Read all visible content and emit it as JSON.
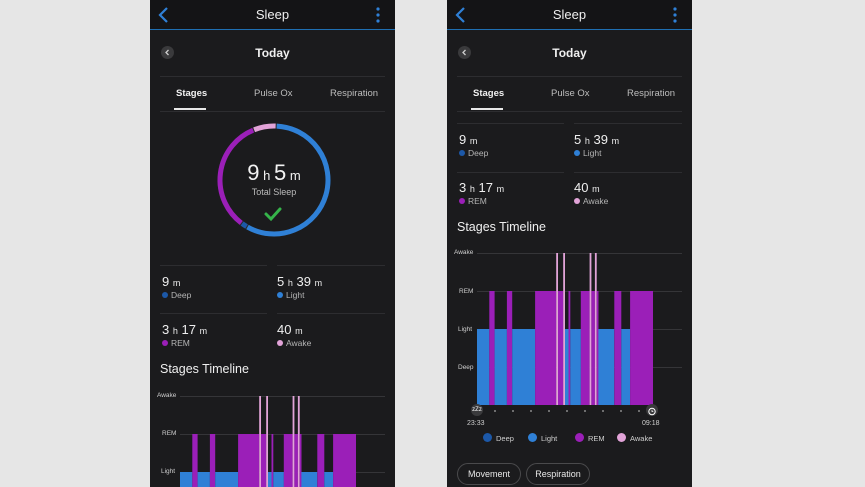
{
  "colors": {
    "deep": "#1c58a8",
    "light": "#2f80d6",
    "rem": "#9b1fb8",
    "awake": "#e2a3d8",
    "accent": "#2f80d6",
    "check": "#35b44a"
  },
  "header": {
    "title": "Sleep",
    "back_icon": "chevron-left-icon",
    "menu_icon": "more-vertical-icon"
  },
  "day": {
    "label": "Today",
    "prev_icon": "chevron-left-icon"
  },
  "tabs": [
    {
      "label": "Stages",
      "active": true
    },
    {
      "label": "Pulse Ox",
      "active": false
    },
    {
      "label": "Respiration",
      "active": false
    }
  ],
  "total_sleep": {
    "hours": "9",
    "hours_unit": "h",
    "minutes": "5",
    "minutes_unit": "m",
    "label": "Total Sleep"
  },
  "stats": [
    {
      "value": "9",
      "unit": "m",
      "label": "Deep",
      "stage": "deep"
    },
    {
      "value": "5",
      "unit": "h",
      "value2": "39",
      "unit2": "m",
      "label": "Light",
      "stage": "light"
    },
    {
      "value": "3",
      "unit": "h",
      "value2": "17",
      "unit2": "m",
      "label": "REM",
      "stage": "rem"
    },
    {
      "value": "40",
      "unit": "m",
      "label": "Awake",
      "stage": "awake"
    }
  ],
  "timeline": {
    "title": "Stages Timeline",
    "levels": [
      "Awake",
      "REM",
      "Light",
      "Deep"
    ],
    "start_time": "23:33",
    "end_time": "09:18",
    "segments": [
      {
        "stage": "light",
        "start": 0.0,
        "end": 0.07
      },
      {
        "stage": "rem",
        "start": 0.07,
        "end": 0.1
      },
      {
        "stage": "light",
        "start": 0.1,
        "end": 0.17
      },
      {
        "stage": "rem",
        "start": 0.17,
        "end": 0.2
      },
      {
        "stage": "light",
        "start": 0.2,
        "end": 0.33
      },
      {
        "stage": "rem",
        "start": 0.33,
        "end": 0.45
      },
      {
        "stage": "awake",
        "start": 0.45,
        "end": 0.46
      },
      {
        "stage": "rem",
        "start": 0.46,
        "end": 0.49
      },
      {
        "stage": "awake",
        "start": 0.49,
        "end": 0.5
      },
      {
        "stage": "light",
        "start": 0.5,
        "end": 0.52
      },
      {
        "stage": "rem",
        "start": 0.52,
        "end": 0.53
      },
      {
        "stage": "light",
        "start": 0.53,
        "end": 0.59
      },
      {
        "stage": "rem",
        "start": 0.59,
        "end": 0.64
      },
      {
        "stage": "awake",
        "start": 0.64,
        "end": 0.65
      },
      {
        "stage": "rem",
        "start": 0.65,
        "end": 0.67
      },
      {
        "stage": "awake",
        "start": 0.67,
        "end": 0.68
      },
      {
        "stage": "rem",
        "start": 0.68,
        "end": 0.69
      },
      {
        "stage": "light",
        "start": 0.69,
        "end": 0.78
      },
      {
        "stage": "rem",
        "start": 0.78,
        "end": 0.82
      },
      {
        "stage": "light",
        "start": 0.82,
        "end": 0.87
      },
      {
        "stage": "rem",
        "start": 0.87,
        "end": 1.0
      }
    ],
    "legend": [
      {
        "stage": "deep",
        "label": "Deep"
      },
      {
        "stage": "light",
        "label": "Light"
      },
      {
        "stage": "rem",
        "label": "REM"
      },
      {
        "stage": "awake",
        "label": "Awake"
      }
    ]
  },
  "ring": {
    "deep_fraction": 0.017,
    "light_fraction": 0.62,
    "rem_fraction": 0.36,
    "awake_fraction": 0.07
  },
  "buttons": {
    "movement": "Movement",
    "respiration": "Respiration"
  },
  "icons": {
    "check": "checkmark-icon",
    "sleep_start": "zzz-icon",
    "alarm": "alarm-clock-icon"
  },
  "sleep_start_glyph": "zZz"
}
